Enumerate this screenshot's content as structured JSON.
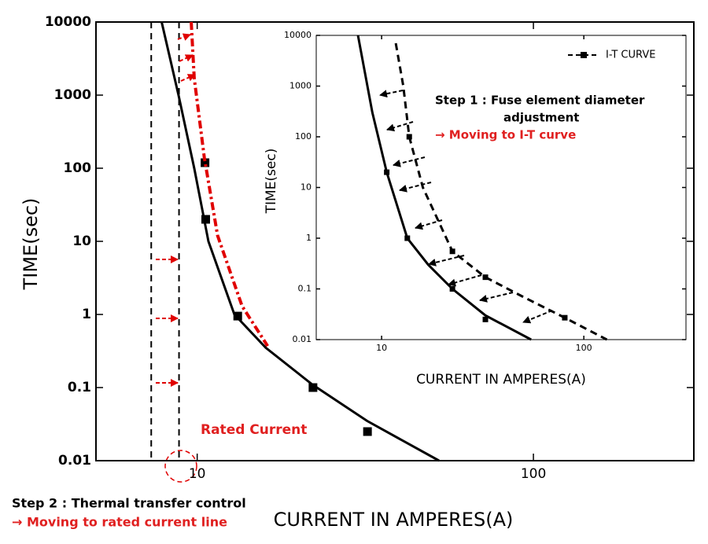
{
  "chart_data": [
    {
      "type": "line",
      "xlabel": "CURRENT IN AMPERES(A)",
      "ylabel": "TIME(sec)",
      "log_x": true,
      "log_y": true,
      "xlim": [
        5,
        300
      ],
      "ylim": [
        0.01,
        10000
      ],
      "xticks": [
        10,
        100
      ],
      "yticks": [
        0.01,
        0.1,
        1,
        10,
        100,
        1000,
        10000
      ],
      "vlines": [
        7.3,
        8.83
      ],
      "series": [
        {
          "color": "#000000",
          "style": "solid",
          "x": [
            7.84,
            8.8,
            9.8,
            10.8,
            12.9,
            16,
            22,
            32,
            52.4
          ],
          "values": [
            10000,
            1000,
            100,
            10,
            1,
            0.35,
            0.11,
            0.035,
            0.01
          ]
        },
        {
          "color": "#000000",
          "style": "markers",
          "x": [
            10.55,
            10.6,
            13.2,
            22.1,
            32.1
          ],
          "values": [
            119,
            20,
            0.95,
            0.1,
            0.025
          ]
        },
        {
          "color": "#e00000",
          "style": "dashdot",
          "x": [
            9.6,
            9.8,
            10.5,
            11.5,
            13.6,
            16.2
          ],
          "values": [
            10000,
            1700,
            140,
            12,
            1.3,
            0.37
          ]
        }
      ],
      "annotations": [
        {
          "text": "Rated Current",
          "color": "#e02020"
        },
        {
          "text": "Step 2 : Thermal transfer control",
          "color": "#000000"
        },
        {
          "text": "→ Moving to rated current line",
          "color": "#e02020"
        }
      ]
    },
    {
      "type": "line",
      "xlabel": "CURRENT IN AMPERES(A)",
      "ylabel": "TIME(sec)",
      "log_x": true,
      "log_y": true,
      "xlim": [
        4.75,
        320
      ],
      "ylim": [
        0.01,
        10000
      ],
      "xticks": [
        10,
        100
      ],
      "yticks": [
        0.01,
        0.1,
        1,
        10,
        100,
        1000,
        10000
      ],
      "legend": "top-right",
      "series": [
        {
          "color": "#000000",
          "style": "solid",
          "x": [
            7.64,
            9,
            10.6,
            13.4,
            17,
            22.4,
            32.6,
            54.9
          ],
          "values": [
            10000,
            300,
            20,
            1,
            0.3,
            0.1,
            0.03,
            0.01
          ]
        },
        {
          "color": "#000000",
          "style": "markers",
          "x": [
            10.6,
            13.4,
            22.4,
            32.6
          ],
          "values": [
            20,
            1,
            0.1,
            0.025
          ]
        },
        {
          "name": "I-T CURVE",
          "color": "#000000",
          "style": "dash",
          "x": [
            11.75,
            12.8,
            13.7,
            16,
            22.4,
            32.6,
            50,
            80.5,
            130
          ],
          "values": [
            7000,
            1000,
            100,
            10,
            0.55,
            0.17,
            0.07,
            0.027,
            0.01
          ]
        },
        {
          "color": "#000000",
          "style": "markers",
          "x": [
            13.7,
            22.4,
            32.6,
            80.5
          ],
          "values": [
            100,
            0.55,
            0.17,
            0.027
          ]
        }
      ],
      "annotations": [
        {
          "text": "Step 1 : Fuse element diameter",
          "color": "#000000"
        },
        {
          "text": "adjustment",
          "color": "#000000"
        },
        {
          "text": "→ Moving to I-T curve",
          "color": "#e02020"
        }
      ]
    }
  ]
}
